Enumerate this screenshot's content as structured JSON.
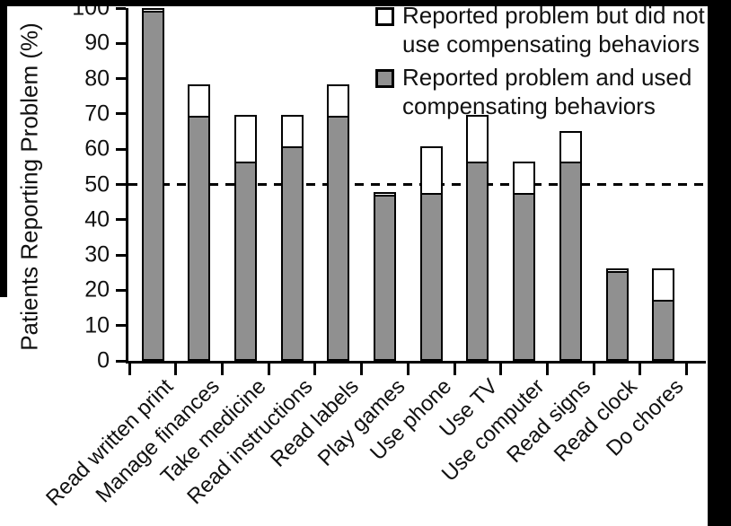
{
  "figure": {
    "background_color": "#ffffff",
    "scan_border_color": "#000000"
  },
  "chart_data": {
    "type": "bar",
    "stacked": true,
    "title": "",
    "xlabel": "",
    "ylabel": "Patients Reporting Problem (%)",
    "ylim": [
      0,
      100
    ],
    "yticks": [
      0,
      10,
      20,
      30,
      40,
      50,
      60,
      70,
      80,
      90,
      100
    ],
    "grid": false,
    "legend_position": "top-right",
    "reference_line": {
      "y": 50,
      "style": "dashed",
      "color": "#000000"
    },
    "categories": [
      "Read written print",
      "Manage finances",
      "Take medicine",
      "Read instructions",
      "Read labels",
      "Play games",
      "Use phone",
      "Use TV",
      "Use computer",
      "Read signs",
      "Read clock",
      "Do chores"
    ],
    "series": [
      {
        "name": "Reported problem and used compensating behaviors",
        "color": "#909090",
        "values": [
          100,
          69.6,
          56.5,
          60.9,
          69.6,
          47.8,
          47.8,
          56.5,
          47.8,
          56.5,
          26.1,
          17.4
        ]
      },
      {
        "name": "Reported problem but did not use compensating behaviors",
        "color": "#ffffff",
        "values": [
          0,
          8.7,
          13.1,
          8.7,
          8.7,
          0,
          13.1,
          13.1,
          8.7,
          8.7,
          0,
          8.7
        ]
      }
    ]
  },
  "legend": {
    "items": [
      {
        "line1": "Reported problem but did not",
        "line2": "use compensating behaviors",
        "color": "#ffffff"
      },
      {
        "line1": "Reported problem and used",
        "line2": "compensating behaviors",
        "color": "#909090"
      }
    ]
  }
}
